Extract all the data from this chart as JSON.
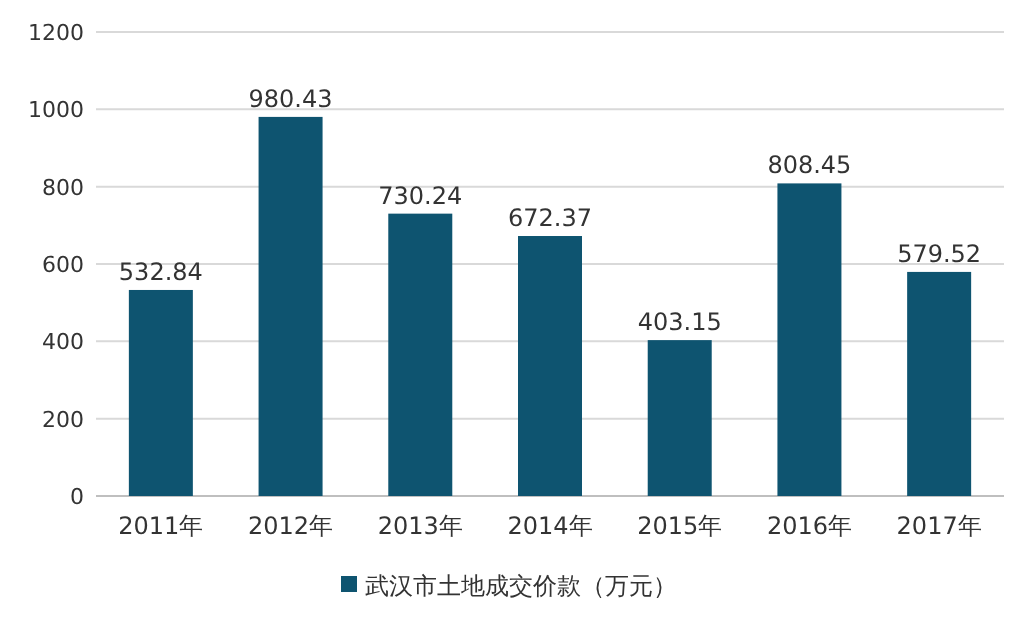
{
  "chart_data": {
    "type": "bar",
    "categories": [
      "2011年",
      "2012年",
      "2013年",
      "2014年",
      "2015年",
      "2016年",
      "2017年"
    ],
    "series": [
      {
        "name": "武汉市土地成交价款（万元）",
        "color": "#0e5470",
        "values": [
          532.84,
          980.43,
          730.24,
          672.37,
          403.15,
          808.45,
          579.52
        ]
      }
    ],
    "ylim": [
      0,
      1200
    ],
    "yticks": [
      0,
      200,
      400,
      600,
      800,
      1000,
      1200
    ],
    "grid": "y",
    "legend": "bottom",
    "data_labels": true
  }
}
